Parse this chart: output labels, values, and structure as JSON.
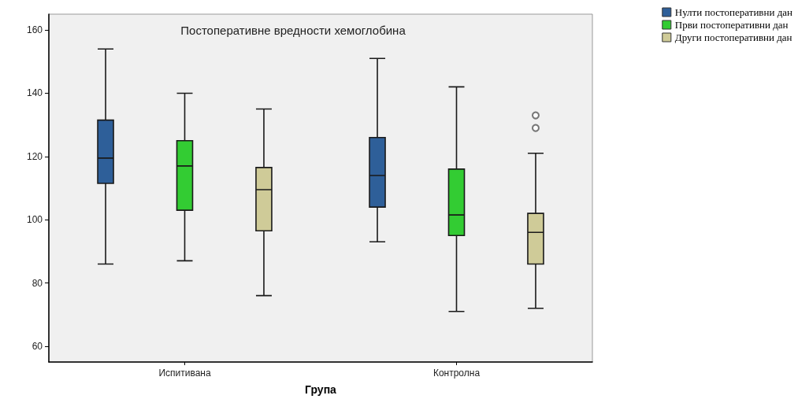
{
  "chart_data": {
    "type": "box",
    "title": "Постоперативне вредности хемоглобина",
    "xlabel": "Група",
    "categories": [
      "Испитивана",
      "Контролна"
    ],
    "series": [
      {
        "name": "Нулти постоперативни дан",
        "color": "#2e5f99",
        "boxes": [
          {
            "low": 86,
            "q1": 111.5,
            "median": 119.5,
            "q3": 131.5,
            "high": 154
          },
          {
            "low": 93,
            "q1": 104,
            "median": 114,
            "q3": 126,
            "high": 151
          }
        ]
      },
      {
        "name": "Први постоперативни дан",
        "color": "#33cc33",
        "boxes": [
          {
            "low": 87,
            "q1": 103,
            "median": 117,
            "q3": 125,
            "high": 140
          },
          {
            "low": 71,
            "q1": 95,
            "median": 101.5,
            "q3": 116,
            "high": 142
          }
        ]
      },
      {
        "name": "Други постоперативни дан",
        "color": "#cfcb98",
        "boxes": [
          {
            "low": 76,
            "q1": 96.5,
            "median": 109.5,
            "q3": 116.5,
            "high": 135
          },
          {
            "low": 72,
            "q1": 86,
            "median": 96,
            "q3": 102,
            "high": 121,
            "outliers": [
              133,
              129
            ]
          }
        ]
      }
    ],
    "ylim": [
      55,
      165
    ],
    "yticks": [
      60,
      80,
      100,
      120,
      140,
      160
    ],
    "legend": "top right",
    "grid": false
  }
}
